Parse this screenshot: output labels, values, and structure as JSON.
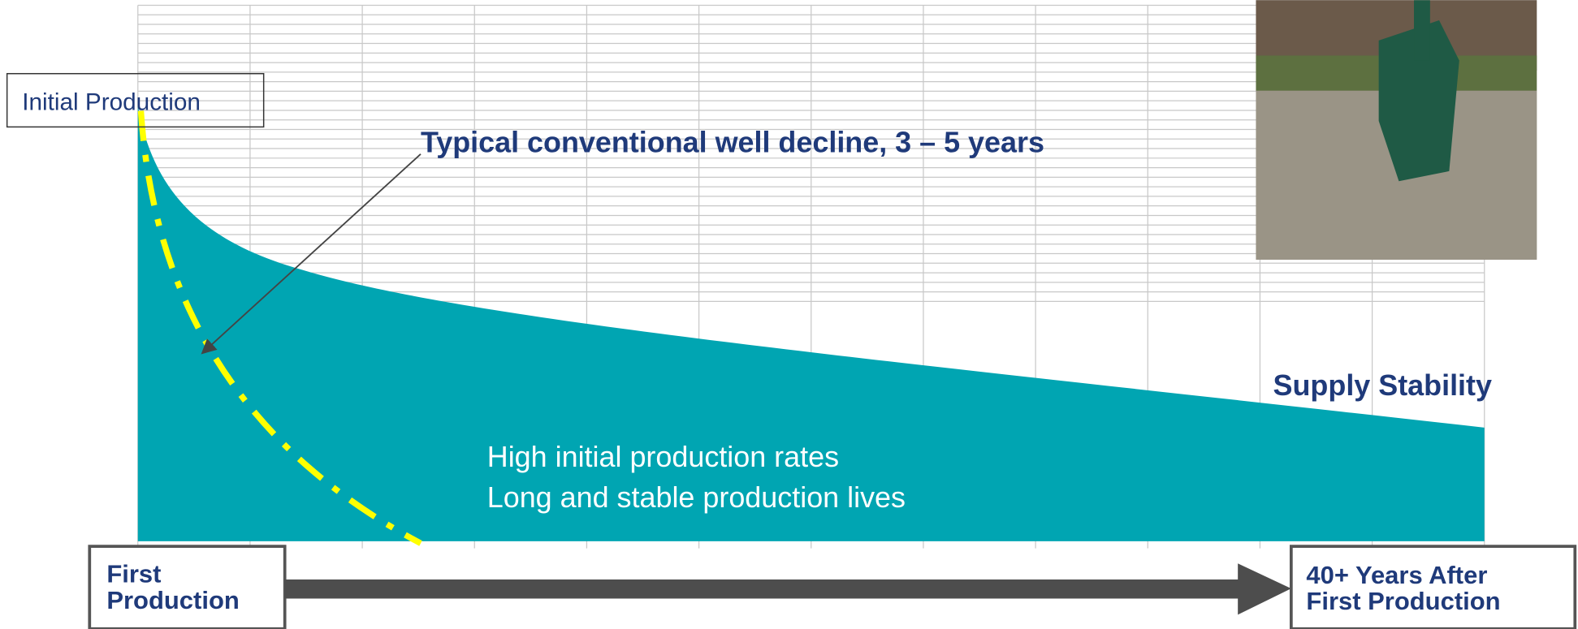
{
  "labels": {
    "initial_production": "Initial Production",
    "conventional_decline": "Typical conventional well decline, 3 – 5 years",
    "supply_stability": "Supply Stability",
    "benefit_1": "High initial production rates",
    "benefit_2": "Long and stable production lives",
    "start": [
      "First",
      "Production"
    ],
    "end": [
      "40+ Years After",
      "First Production"
    ]
  }
}
